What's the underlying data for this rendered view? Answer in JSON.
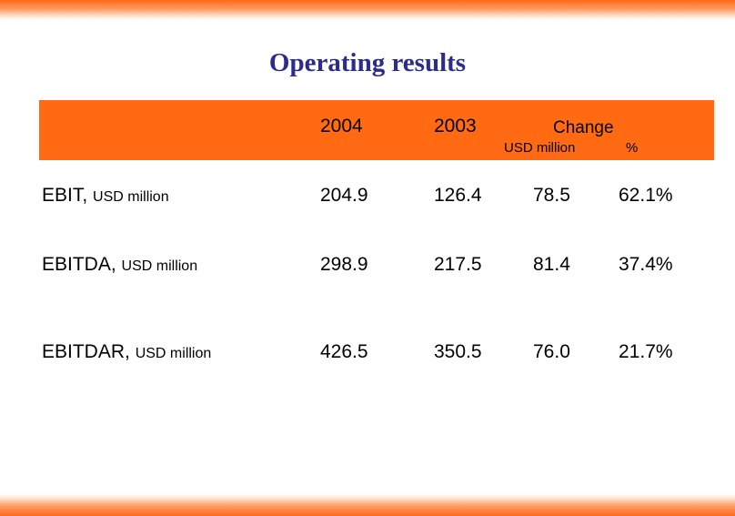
{
  "title": "Operating results",
  "header": {
    "col_2004": "2004",
    "col_2003": "2003",
    "change": "Change",
    "sub_usd": "USD million",
    "sub_pct": "%"
  },
  "rows": [
    {
      "label": "EBIT,",
      "unit": "USD million",
      "v2004": "204.9",
      "v2003": "126.4",
      "change_usd": "78.5",
      "change_pct": "62.1%"
    },
    {
      "label": "EBITDA,",
      "unit": "USD million",
      "v2004": "298.9",
      "v2003": "217.5",
      "change_usd": "81.4",
      "change_pct": "37.4%"
    },
    {
      "label": "EBITDAR,",
      "unit": "USD million",
      "v2004": "426.5",
      "v2003": "350.5",
      "change_usd": "76.0",
      "change_pct": "21.7%"
    }
  ],
  "colors": {
    "accent": "#ff6a13",
    "title": "#2b2c8c"
  }
}
